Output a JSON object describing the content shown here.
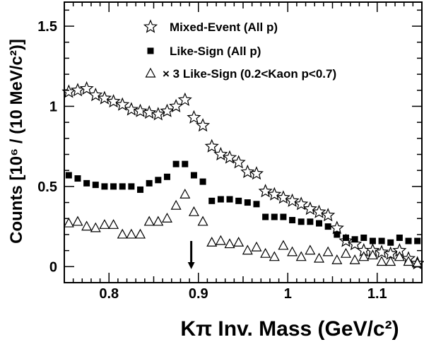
{
  "chart_data": {
    "type": "scatter",
    "xlabel": "Kπ Inv. Mass (GeV/c²)",
    "ylabel": "Counts [10⁶ / (10 MeV/c²)]",
    "xlim": [
      0.75,
      1.15
    ],
    "ylim": [
      -0.1,
      1.65
    ],
    "x_ticks": [
      0.8,
      0.9,
      1.0,
      1.1
    ],
    "x_tick_labels": [
      "0.8",
      "0.9",
      "1",
      "1.1"
    ],
    "y_ticks": [
      0,
      0.5,
      1,
      1.5
    ],
    "y_tick_labels": [
      "0",
      "0.5",
      "1",
      "1.5"
    ],
    "legend_position": "top-right",
    "grid": false,
    "series": [
      {
        "name": "Mixed-Event (All p)",
        "marker": "open-star",
        "x": [
          0.755,
          0.765,
          0.775,
          0.785,
          0.795,
          0.805,
          0.815,
          0.825,
          0.835,
          0.845,
          0.855,
          0.865,
          0.875,
          0.885,
          0.895,
          0.905,
          0.915,
          0.925,
          0.935,
          0.945,
          0.955,
          0.965,
          0.975,
          0.985,
          0.995,
          1.005,
          1.015,
          1.025,
          1.035,
          1.045,
          1.055,
          1.065,
          1.075,
          1.085,
          1.095,
          1.105,
          1.115,
          1.125,
          1.135,
          1.145
        ],
        "y": [
          1.09,
          1.1,
          1.11,
          1.07,
          1.05,
          1.03,
          1.01,
          0.98,
          0.97,
          0.96,
          0.95,
          0.97,
          1.0,
          1.04,
          0.93,
          0.88,
          0.75,
          0.7,
          0.68,
          0.65,
          0.59,
          0.58,
          0.47,
          0.45,
          0.43,
          0.41,
          0.39,
          0.36,
          0.34,
          0.32,
          0.24,
          0.16,
          0.14,
          0.1,
          0.1,
          0.09,
          0.08,
          0.1,
          0.05,
          0.02
        ]
      },
      {
        "name": "Like-Sign (All p)",
        "marker": "filled-square",
        "x": [
          0.755,
          0.765,
          0.775,
          0.785,
          0.795,
          0.805,
          0.815,
          0.825,
          0.835,
          0.845,
          0.855,
          0.865,
          0.875,
          0.885,
          0.895,
          0.905,
          0.915,
          0.925,
          0.935,
          0.945,
          0.955,
          0.965,
          0.975,
          0.985,
          0.995,
          1.005,
          1.015,
          1.025,
          1.035,
          1.045,
          1.055,
          1.065,
          1.075,
          1.085,
          1.095,
          1.105,
          1.115,
          1.125,
          1.135,
          1.145
        ],
        "y": [
          0.57,
          0.55,
          0.52,
          0.51,
          0.5,
          0.5,
          0.5,
          0.5,
          0.48,
          0.52,
          0.54,
          0.56,
          0.64,
          0.64,
          0.57,
          0.53,
          0.41,
          0.42,
          0.42,
          0.41,
          0.4,
          0.39,
          0.31,
          0.31,
          0.31,
          0.29,
          0.28,
          0.28,
          0.27,
          0.25,
          0.2,
          0.18,
          0.17,
          0.18,
          0.16,
          0.16,
          0.15,
          0.18,
          0.16,
          0.16
        ]
      },
      {
        "name": "× 3 Like-Sign (0.2<Kaon p<0.7)",
        "marker": "open-triangle",
        "x": [
          0.755,
          0.765,
          0.775,
          0.785,
          0.795,
          0.805,
          0.815,
          0.825,
          0.835,
          0.845,
          0.855,
          0.865,
          0.875,
          0.885,
          0.895,
          0.905,
          0.915,
          0.925,
          0.935,
          0.945,
          0.955,
          0.965,
          0.975,
          0.985,
          0.995,
          1.005,
          1.015,
          1.025,
          1.035,
          1.045,
          1.055,
          1.065,
          1.075,
          1.085,
          1.095,
          1.105,
          1.115,
          1.125,
          1.135,
          1.145
        ],
        "y": [
          0.27,
          0.28,
          0.25,
          0.24,
          0.26,
          0.26,
          0.2,
          0.2,
          0.2,
          0.28,
          0.28,
          0.3,
          0.38,
          0.45,
          0.34,
          0.28,
          0.15,
          0.16,
          0.14,
          0.15,
          0.1,
          0.12,
          0.08,
          0.06,
          0.13,
          0.09,
          0.06,
          0.1,
          0.05,
          0.09,
          0.04,
          0.08,
          0.04,
          0.06,
          0.07,
          0.03,
          0.03,
          0.06,
          0.03,
          0.02
        ]
      }
    ],
    "annotations": [
      {
        "type": "arrow",
        "direction": "down",
        "x": 0.892,
        "y_from": 0.16,
        "y_to": -0.02
      }
    ]
  }
}
